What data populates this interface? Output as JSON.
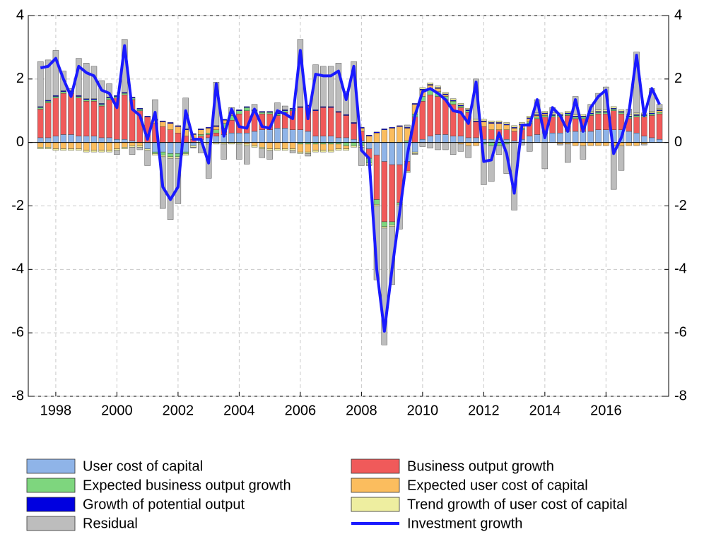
{
  "chart_data": {
    "type": "bar",
    "stacked": true,
    "x": [
      1997.5,
      1997.75,
      1998,
      1998.25,
      1998.5,
      1998.75,
      1999,
      1999.25,
      1999.5,
      1999.75,
      2000,
      2000.25,
      2000.5,
      2000.75,
      2001,
      2001.25,
      2001.5,
      2001.75,
      2002,
      2002.25,
      2002.5,
      2002.75,
      2003,
      2003.25,
      2003.5,
      2003.75,
      2004,
      2004.25,
      2004.5,
      2004.75,
      2005,
      2005.25,
      2005.5,
      2005.75,
      2006,
      2006.25,
      2006.5,
      2006.75,
      2007,
      2007.25,
      2007.5,
      2007.75,
      2008,
      2008.25,
      2008.5,
      2008.75,
      2009,
      2009.25,
      2009.5,
      2009.75,
      2010,
      2010.25,
      2010.5,
      2010.75,
      2011,
      2011.25,
      2011.5,
      2011.75,
      2012,
      2012.25,
      2012.5,
      2012.75,
      2013,
      2013.25,
      2013.5,
      2013.75,
      2014,
      2014.25,
      2014.5,
      2014.75,
      2015,
      2015.25,
      2015.5,
      2015.75,
      2016,
      2016.25,
      2016.5,
      2016.75,
      2017,
      2017.25,
      2017.5,
      2017.75
    ],
    "xlim": [
      1997.1,
      2018.05
    ],
    "xticks": [
      1998,
      2000,
      2002,
      2004,
      2006,
      2008,
      2010,
      2012,
      2014,
      2016
    ],
    "ylim": [
      -8,
      4
    ],
    "yticks": [
      -8,
      -6,
      -4,
      -2,
      0,
      2,
      4
    ],
    "grid": true,
    "series": [
      {
        "name": "User cost of capital",
        "color": "#8fb4e8",
        "values": [
          0.15,
          0.15,
          0.2,
          0.25,
          0.25,
          0.2,
          0.2,
          0.2,
          0.15,
          0.15,
          0.1,
          0.1,
          0.05,
          0,
          -0.2,
          -0.3,
          -0.3,
          -0.35,
          -0.35,
          -0.3,
          -0.1,
          0.1,
          0.15,
          0.2,
          0.25,
          0.3,
          0.3,
          0.3,
          0.35,
          0.4,
          0.4,
          0.45,
          0.45,
          0.4,
          0.4,
          0.35,
          0.2,
          0.2,
          0.2,
          0.15,
          0.15,
          0.1,
          0.05,
          -0.2,
          -0.4,
          -0.6,
          -0.7,
          -0.7,
          -0.6,
          -0.3,
          0.1,
          0.2,
          0.25,
          0.25,
          0.2,
          0.2,
          0.15,
          0.15,
          0.1,
          0.1,
          0.1,
          0.1,
          0.05,
          0.1,
          0.2,
          0.25,
          0.3,
          0.3,
          0.3,
          0.35,
          0.35,
          0.35,
          0.35,
          0.4,
          0.4,
          0.4,
          0.4,
          0.35,
          0.3,
          0.2,
          0.15,
          0.1
        ]
      },
      {
        "name": "Business output growth",
        "color": "#f05a5a",
        "values": [
          0.9,
          1.1,
          1.2,
          1.3,
          1.3,
          1.2,
          1.1,
          1.1,
          1.0,
          1.2,
          1.3,
          1.4,
          1.3,
          1.0,
          0.8,
          0.6,
          0.5,
          0.4,
          0.3,
          0.2,
          0.1,
          0.1,
          0.1,
          0.1,
          0.2,
          0.4,
          0.6,
          0.7,
          0.6,
          0.5,
          0.5,
          0.4,
          0.5,
          0.6,
          0.7,
          0.8,
          0.8,
          0.9,
          0.9,
          0.8,
          0.7,
          0.5,
          0.3,
          -0.3,
          -1.4,
          -1.9,
          -1.8,
          -1.2,
          -0.3,
          0.8,
          1.2,
          1.3,
          1.2,
          1.1,
          1.0,
          0.9,
          0.8,
          0.5,
          0.4,
          0.3,
          0.3,
          0.3,
          0.3,
          0.3,
          0.4,
          0.5,
          0.5,
          0.5,
          0.5,
          0.5,
          0.4,
          0.4,
          0.5,
          0.5,
          0.5,
          0.6,
          0.5,
          0.4,
          0.5,
          0.6,
          0.7,
          0.8
        ]
      },
      {
        "name": "Expected business output growth",
        "color": "#7ed67e",
        "values": [
          0.05,
          0.05,
          0.05,
          0.05,
          0.05,
          0.05,
          0.05,
          0.05,
          0.05,
          0.05,
          0.05,
          0.05,
          0.05,
          0.05,
          0,
          -0.05,
          -0.1,
          -0.1,
          -0.1,
          -0.05,
          0,
          0.05,
          0.05,
          0.1,
          0.15,
          0.15,
          0.1,
          0.1,
          0.05,
          0.05,
          0.05,
          0.05,
          0.05,
          0.05,
          -0.05,
          -0.05,
          -0.05,
          -0.05,
          -0.05,
          -0.05,
          -0.1,
          -0.1,
          -0.1,
          -0.15,
          -0.15,
          -0.15,
          -0.1,
          -0.05,
          0.05,
          0.1,
          0.15,
          0.15,
          0.15,
          0.1,
          0.1,
          0.05,
          0.05,
          0,
          -0.05,
          -0.1,
          -0.1,
          -0.05,
          0,
          0.05,
          0.05,
          0.05,
          0.05,
          0.05,
          0.05,
          0.05,
          0.05,
          0.05,
          0.05,
          0.05,
          0.05,
          0.05,
          0.05,
          0.05,
          0.05,
          0.05,
          0.05,
          0.05
        ]
      },
      {
        "name": "Expected user cost of capital",
        "color": "#fbbd5e",
        "values": [
          -0.15,
          -0.15,
          -0.2,
          -0.2,
          -0.2,
          -0.2,
          -0.25,
          -0.25,
          -0.25,
          -0.25,
          -0.2,
          -0.15,
          -0.1,
          -0.1,
          0,
          0.1,
          0.15,
          0.2,
          0.2,
          0.2,
          0.15,
          0.15,
          0.15,
          0.1,
          0.1,
          0.05,
          0,
          -0.05,
          -0.1,
          -0.15,
          -0.2,
          -0.2,
          -0.2,
          -0.2,
          -0.25,
          -0.25,
          -0.2,
          -0.2,
          -0.2,
          -0.15,
          -0.1,
          0,
          0.1,
          0.2,
          0.3,
          0.4,
          0.45,
          0.5,
          0.4,
          0.3,
          0.2,
          0.15,
          0.1,
          0.05,
          0,
          -0.05,
          -0.1,
          -0.1,
          0.15,
          0.2,
          0.2,
          0.15,
          0.1,
          0.1,
          0.1,
          0.05,
          0.05,
          0,
          -0.05,
          -0.05,
          -0.1,
          -0.1,
          -0.1,
          -0.1,
          -0.1,
          -0.1,
          -0.1,
          -0.1,
          -0.1,
          -0.05,
          0,
          0.05
        ]
      },
      {
        "name": "Growth of potential output",
        "color": "#0000e0",
        "values": [
          0.03,
          0.03,
          0.03,
          0.03,
          0.03,
          0.03,
          0.03,
          0.03,
          0.03,
          0.03,
          0.03,
          0.03,
          0.03,
          0.03,
          0.03,
          0.03,
          0.03,
          0.03,
          0.03,
          0.03,
          0.03,
          0.03,
          0.03,
          0.03,
          0.03,
          0.03,
          0.03,
          0.03,
          0.03,
          0.03,
          0.03,
          0.03,
          0.03,
          0.03,
          0.03,
          0.03,
          0.03,
          0.03,
          0.03,
          0.03,
          0.03,
          0.03,
          0.03,
          0.03,
          0.03,
          0.03,
          0.03,
          0.03,
          0.03,
          0.03,
          0.03,
          0.03,
          0.03,
          0.03,
          0.03,
          0.03,
          0.03,
          0.03,
          0.03,
          0.03,
          0.03,
          0.03,
          0.03,
          0.03,
          0.03,
          0.03,
          0.03,
          0.03,
          0.03,
          0.03,
          0.03,
          0.03,
          0.03,
          0.03,
          0.03,
          0.03,
          0.03,
          0.03,
          0.03,
          0.03,
          0.03,
          0.03
        ]
      },
      {
        "name": "Trend growth of user cost of capital",
        "color": "#eeeea0",
        "values": [
          -0.05,
          -0.05,
          -0.05,
          -0.05,
          -0.05,
          -0.05,
          -0.05,
          -0.05,
          -0.05,
          -0.05,
          -0.05,
          -0.05,
          -0.05,
          -0.05,
          -0.05,
          -0.05,
          -0.05,
          -0.05,
          -0.05,
          -0.05,
          -0.05,
          -0.05,
          -0.05,
          -0.05,
          -0.05,
          -0.05,
          -0.05,
          -0.05,
          -0.05,
          -0.05,
          -0.05,
          -0.05,
          -0.05,
          -0.05,
          -0.05,
          -0.05,
          -0.05,
          -0.05,
          -0.05,
          -0.05,
          -0.05,
          -0.05,
          -0.05,
          -0.05,
          -0.05,
          -0.05,
          -0.05,
          -0.05,
          -0.05,
          -0.05,
          0.05,
          0.05,
          0.05,
          0.05,
          0.05,
          0.05,
          0.05,
          0.05,
          0.05,
          0.05,
          0.05,
          0.05,
          0.05,
          0.05,
          0.05,
          0.05,
          0.05,
          0.05,
          0.05,
          0.05,
          0.05,
          0.05,
          0.05,
          0.05,
          0.05,
          0.05,
          0.05,
          0.05,
          0.05,
          0.05,
          0.05,
          0.05
        ]
      },
      {
        "name": "Residual",
        "color": "#bdbdbd",
        "values": [
          1.42,
          1.27,
          1.42,
          0.62,
          0.07,
          1.17,
          1.12,
          1.02,
          0.72,
          0.42,
          -0.13,
          1.67,
          -0.23,
          -0.08,
          -0.48,
          0.62,
          -1.63,
          -1.93,
          -1.43,
          0.97,
          -0.03,
          -0.28,
          -1.08,
          1.37,
          -0.48,
          0.17,
          -0.48,
          -0.58,
          0.17,
          -0.28,
          -0.28,
          0.32,
          0.12,
          -0.08,
          2.12,
          -0.08,
          1.42,
          1.27,
          1.27,
          1.52,
          0.72,
          1.92,
          -0.58,
          -0.03,
          -2.33,
          -3.68,
          -1.83,
          -0.73,
          0.07,
          -0.03,
          -0.13,
          -0.18,
          -0.23,
          -0.23,
          -0.38,
          -0.23,
          -0.38,
          1.27,
          -1.28,
          -1.13,
          -0.28,
          -0.93,
          -2.13,
          -0.08,
          -0.28,
          0.42,
          -0.83,
          0.17,
          -0.03,
          -0.58,
          0.57,
          -0.43,
          0.22,
          0.52,
          0.72,
          -1.38,
          -0.78,
          0.17,
          1.92,
          -0.03,
          0.72,
          0.12
        ]
      },
      {
        "name": "Investment growth",
        "type": "line",
        "color": "#1a1aff",
        "values": [
          2.35,
          2.4,
          2.65,
          2.0,
          1.45,
          2.4,
          2.2,
          2.1,
          1.65,
          1.55,
          1.1,
          3.05,
          1.05,
          0.85,
          0.1,
          0.95,
          -1.4,
          -1.8,
          -1.4,
          1.0,
          0.1,
          0.1,
          -0.65,
          1.85,
          0.2,
          1.05,
          0.5,
          0.45,
          1.05,
          0.5,
          0.45,
          1.0,
          0.9,
          0.75,
          2.9,
          0.75,
          2.15,
          2.1,
          2.1,
          2.25,
          1.35,
          2.4,
          -0.25,
          -0.5,
          -4.0,
          -5.95,
          -4.0,
          -2.2,
          -0.4,
          0.85,
          1.6,
          1.7,
          1.55,
          1.35,
          1.0,
          0.95,
          0.6,
          1.9,
          -0.6,
          -0.55,
          0.3,
          -0.35,
          -1.6,
          0.55,
          0.55,
          1.35,
          0.15,
          1.1,
          0.85,
          0.35,
          1.35,
          0.35,
          1.1,
          1.45,
          1.65,
          -0.35,
          0.15,
          0.95,
          2.75,
          0.85,
          1.7,
          1.2
        ]
      }
    ]
  }
}
